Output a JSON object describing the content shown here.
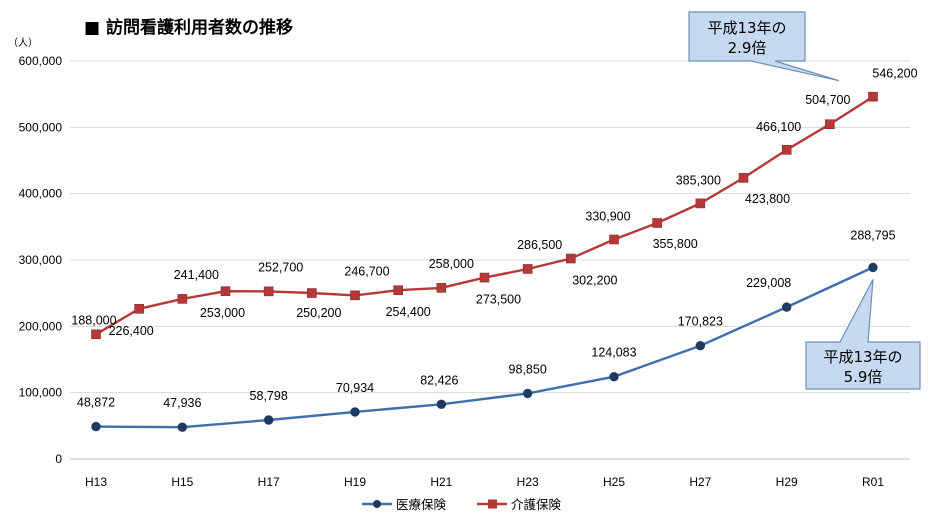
{
  "chart_data": {
    "type": "line",
    "title": "■ 訪問看護利用者数の推移",
    "y_unit": "（人）",
    "ylim": [
      0,
      600000
    ],
    "y_ticks": [
      "0",
      "100,000",
      "200,000",
      "300,000",
      "400,000",
      "500,000",
      "600,000"
    ],
    "x_tick_labels": [
      "H13",
      "H15",
      "H17",
      "H19",
      "H21",
      "H23",
      "H25",
      "H27",
      "H29",
      "R01"
    ],
    "grid": true,
    "legend_position": "bottom",
    "series": [
      {
        "name": "医療保険",
        "color": "#3f6fab",
        "marker": "circle",
        "x": [
          "H13",
          "H15",
          "H17",
          "H19",
          "H21",
          "H23",
          "H25",
          "H27",
          "H29",
          "R01"
        ],
        "values": [
          48872,
          47936,
          58798,
          70934,
          82426,
          98850,
          124083,
          170823,
          229008,
          288795
        ],
        "labels": [
          "48,872",
          "47,936",
          "58,798",
          "70,934",
          "82,426",
          "98,850",
          "124,083",
          "170,823",
          "229,008",
          "288,795"
        ]
      },
      {
        "name": "介護保険",
        "color": "#b6393a",
        "marker": "square",
        "x": [
          "H13",
          "H14",
          "H15",
          "H16",
          "H17",
          "H18",
          "H19",
          "H20",
          "H21",
          "H22",
          "H23",
          "H24",
          "H25",
          "H26",
          "H27",
          "H28",
          "H29",
          "H30",
          "R01"
        ],
        "values": [
          188000,
          226400,
          241400,
          253000,
          252700,
          250200,
          246700,
          254400,
          258000,
          273500,
          286500,
          302200,
          330900,
          355800,
          385300,
          423800,
          466100,
          504700,
          546200
        ],
        "labels": [
          "188,000",
          "226,400",
          "241,400",
          "253,000",
          "252,700",
          "250,200",
          "246,700",
          "254,400",
          "258,000",
          "273,500",
          "286,500",
          "302,200",
          "330,900",
          "355,800",
          "385,300",
          "423,800",
          "466,100",
          "504,700",
          "546,200"
        ]
      }
    ],
    "annotations": [
      {
        "series": "介護保険",
        "lines": [
          "平成13年の",
          "2.9倍"
        ]
      },
      {
        "series": "医療保険",
        "lines": [
          "平成13年の",
          "5.9倍"
        ]
      }
    ]
  }
}
